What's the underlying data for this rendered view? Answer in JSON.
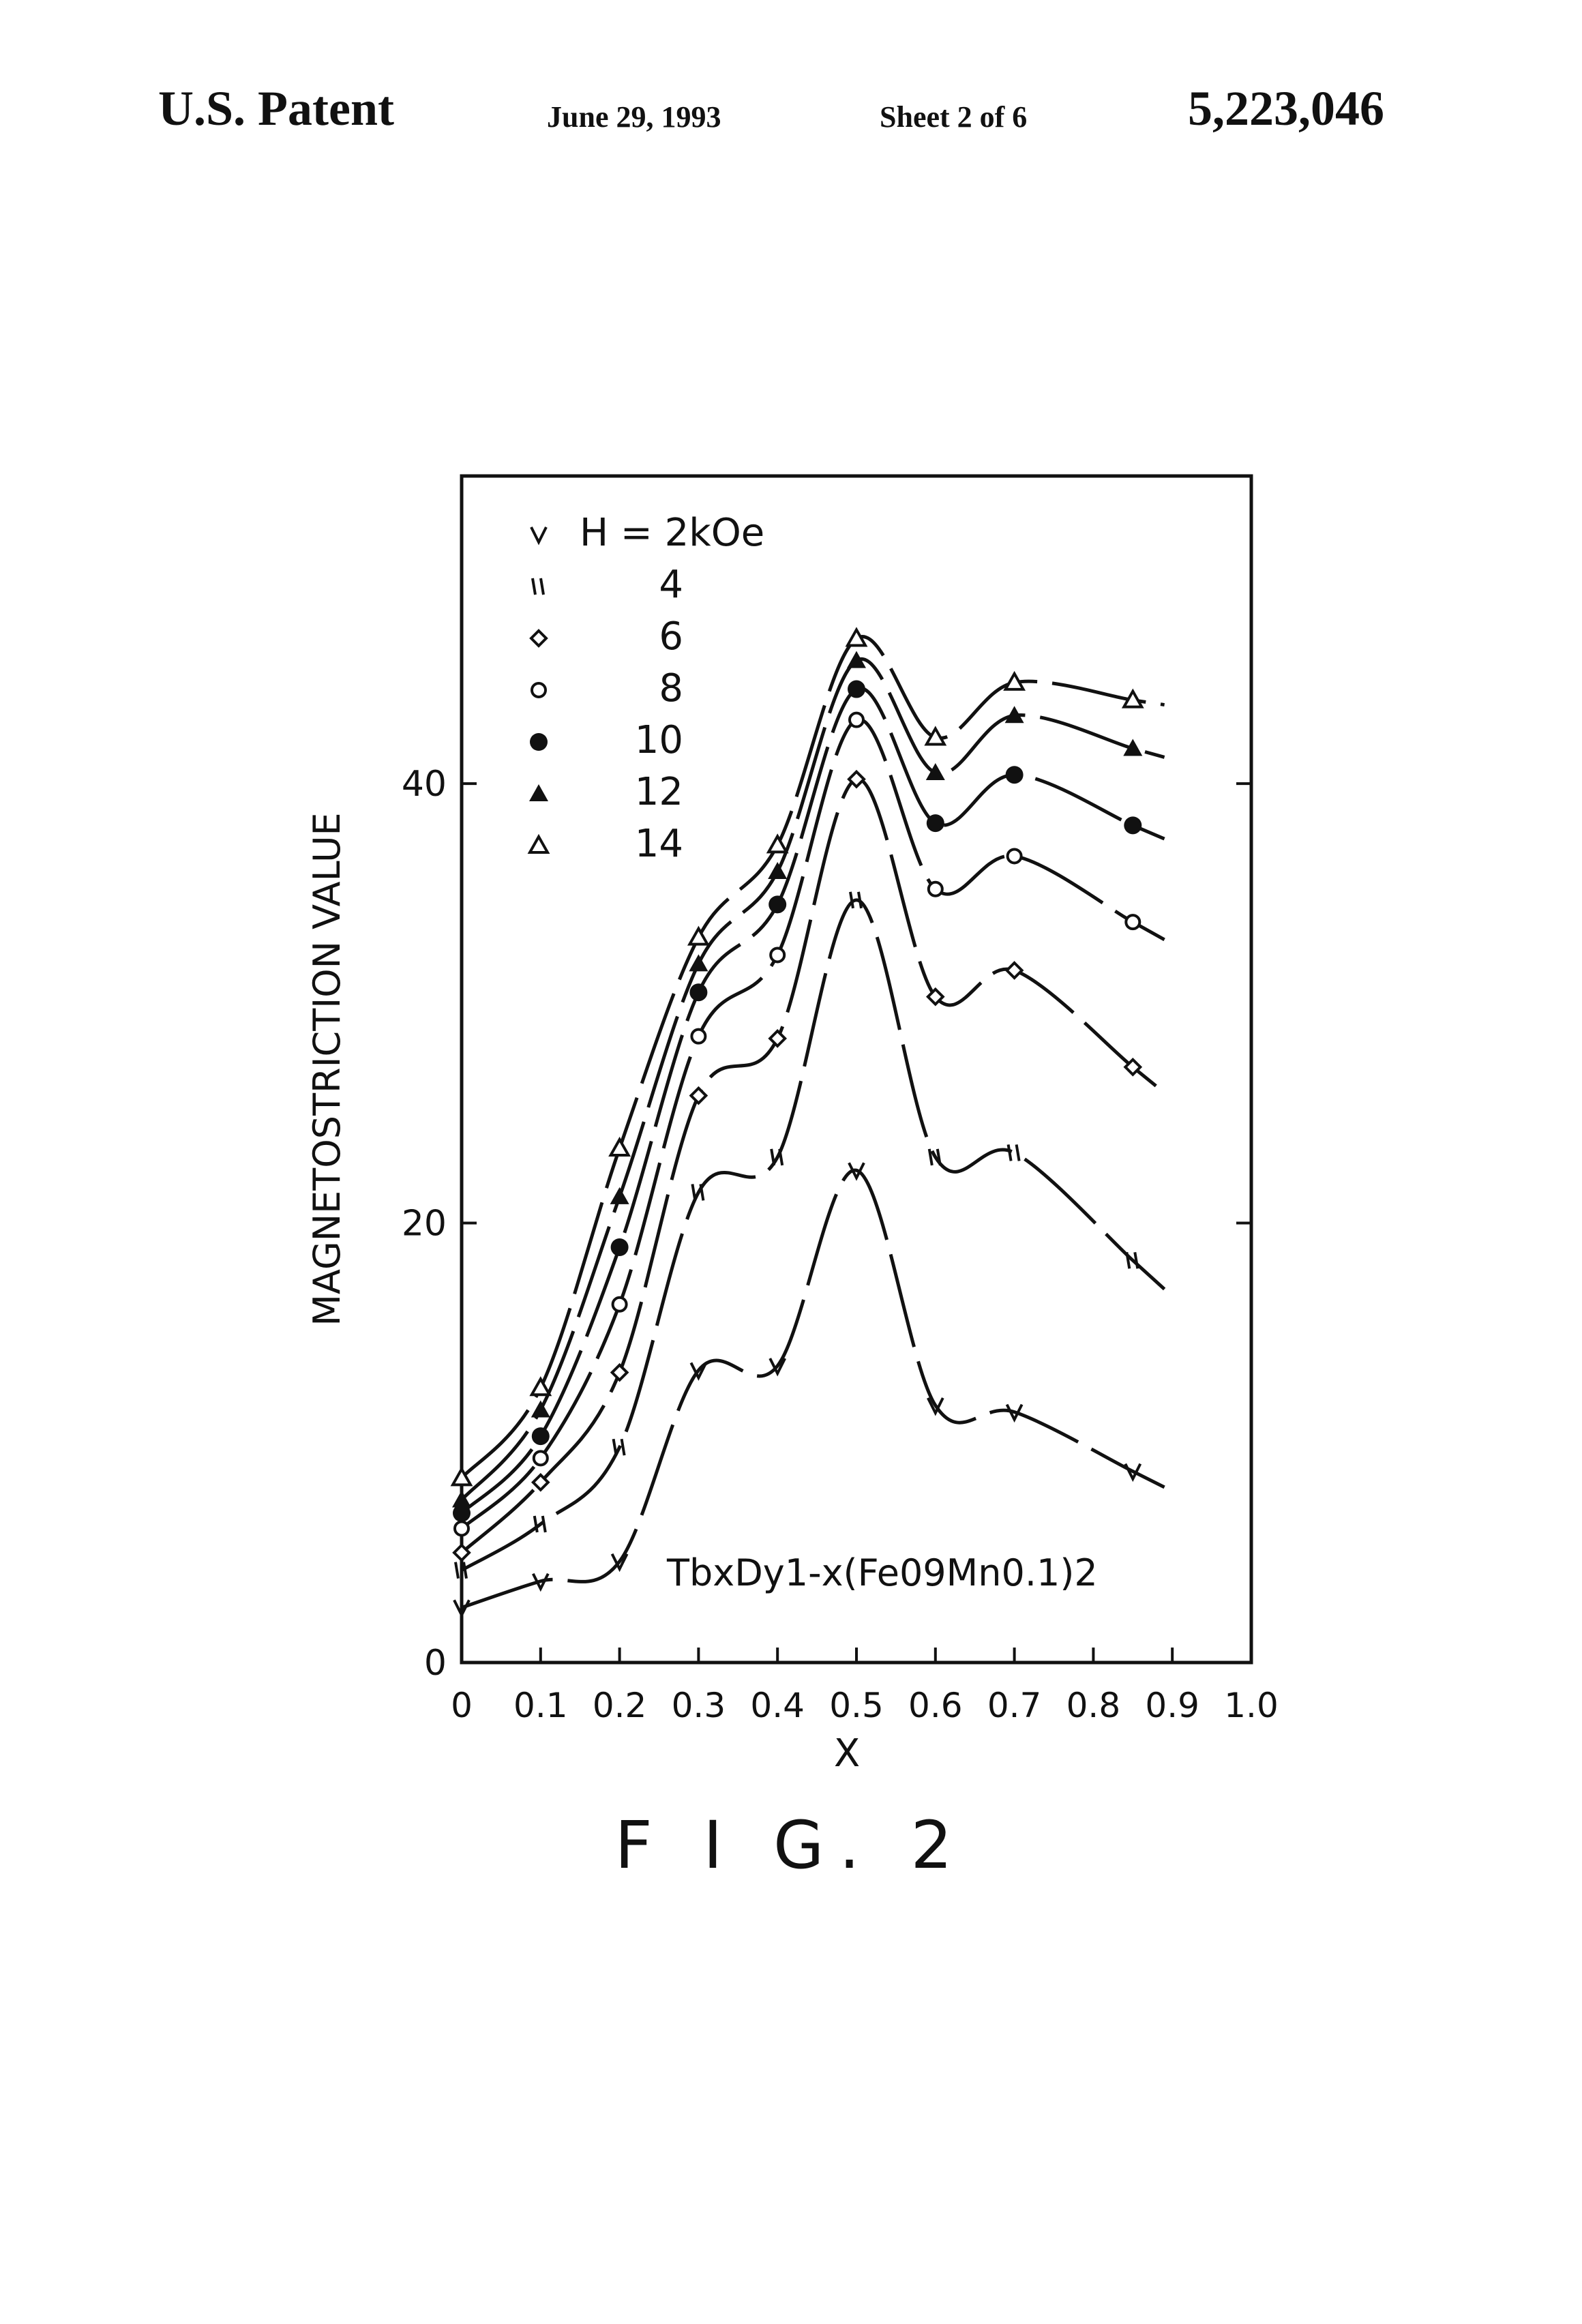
{
  "header": {
    "left": "U.S. Patent",
    "date": "June 29, 1993",
    "sheet": "Sheet 2 of 6",
    "number": "5,223,046"
  },
  "figure_caption": "F I G. 2",
  "chart_data": {
    "type": "line",
    "title": "",
    "xlabel": "X",
    "ylabel": "MAGNETOSTRICTION VALUE",
    "xlim": [
      0,
      1.0
    ],
    "ylim": [
      0,
      54
    ],
    "x_ticks": [
      0,
      0.1,
      0.2,
      0.3,
      0.4,
      0.5,
      0.6,
      0.7,
      0.8,
      0.9,
      1.0
    ],
    "x_tick_labels": [
      "0",
      "0.1",
      "0.2",
      "0.3",
      "0.4",
      "0.5",
      "0.6",
      "0.7",
      "0.8",
      "0.9",
      "1.0"
    ],
    "y_ticks": [
      0,
      20,
      40
    ],
    "y_tick_labels": [
      "0",
      "20",
      "40"
    ],
    "grid": false,
    "legend_position": "top-left",
    "annotation": "TbxDy1-x(Fe09Mn0.1)2",
    "x": [
      0,
      0.1,
      0.2,
      0.3,
      0.4,
      0.5,
      0.6,
      0.7,
      0.85
    ],
    "series": [
      {
        "name": "H = 2kOe",
        "marker": "v",
        "values": [
          2.5,
          3.7,
          4.6,
          13.3,
          13.5,
          22.4,
          11.7,
          11.4,
          8.7
        ]
      },
      {
        "name": "4",
        "marker": "″",
        "values": [
          4.2,
          6.3,
          9.8,
          21.4,
          23.0,
          34.7,
          23.0,
          23.2,
          18.3
        ]
      },
      {
        "name": "6",
        "marker": "◇",
        "values": [
          5.0,
          8.2,
          13.2,
          25.8,
          28.4,
          40.2,
          30.3,
          31.5,
          27.1
        ]
      },
      {
        "name": "8",
        "marker": "○",
        "values": [
          6.1,
          9.3,
          16.3,
          28.5,
          32.2,
          42.9,
          35.2,
          36.7,
          33.7
        ]
      },
      {
        "name": "10",
        "marker": "●",
        "values": [
          6.8,
          10.3,
          18.9,
          30.5,
          34.5,
          44.3,
          38.2,
          40.4,
          38.1
        ]
      },
      {
        "name": "12",
        "marker": "▲",
        "values": [
          7.4,
          11.5,
          21.2,
          31.8,
          36.0,
          45.6,
          40.5,
          43.1,
          41.6
        ]
      },
      {
        "name": "14",
        "marker": "△",
        "values": [
          8.4,
          12.5,
          23.4,
          33.0,
          37.2,
          46.6,
          42.1,
          44.6,
          43.8
        ]
      }
    ]
  }
}
